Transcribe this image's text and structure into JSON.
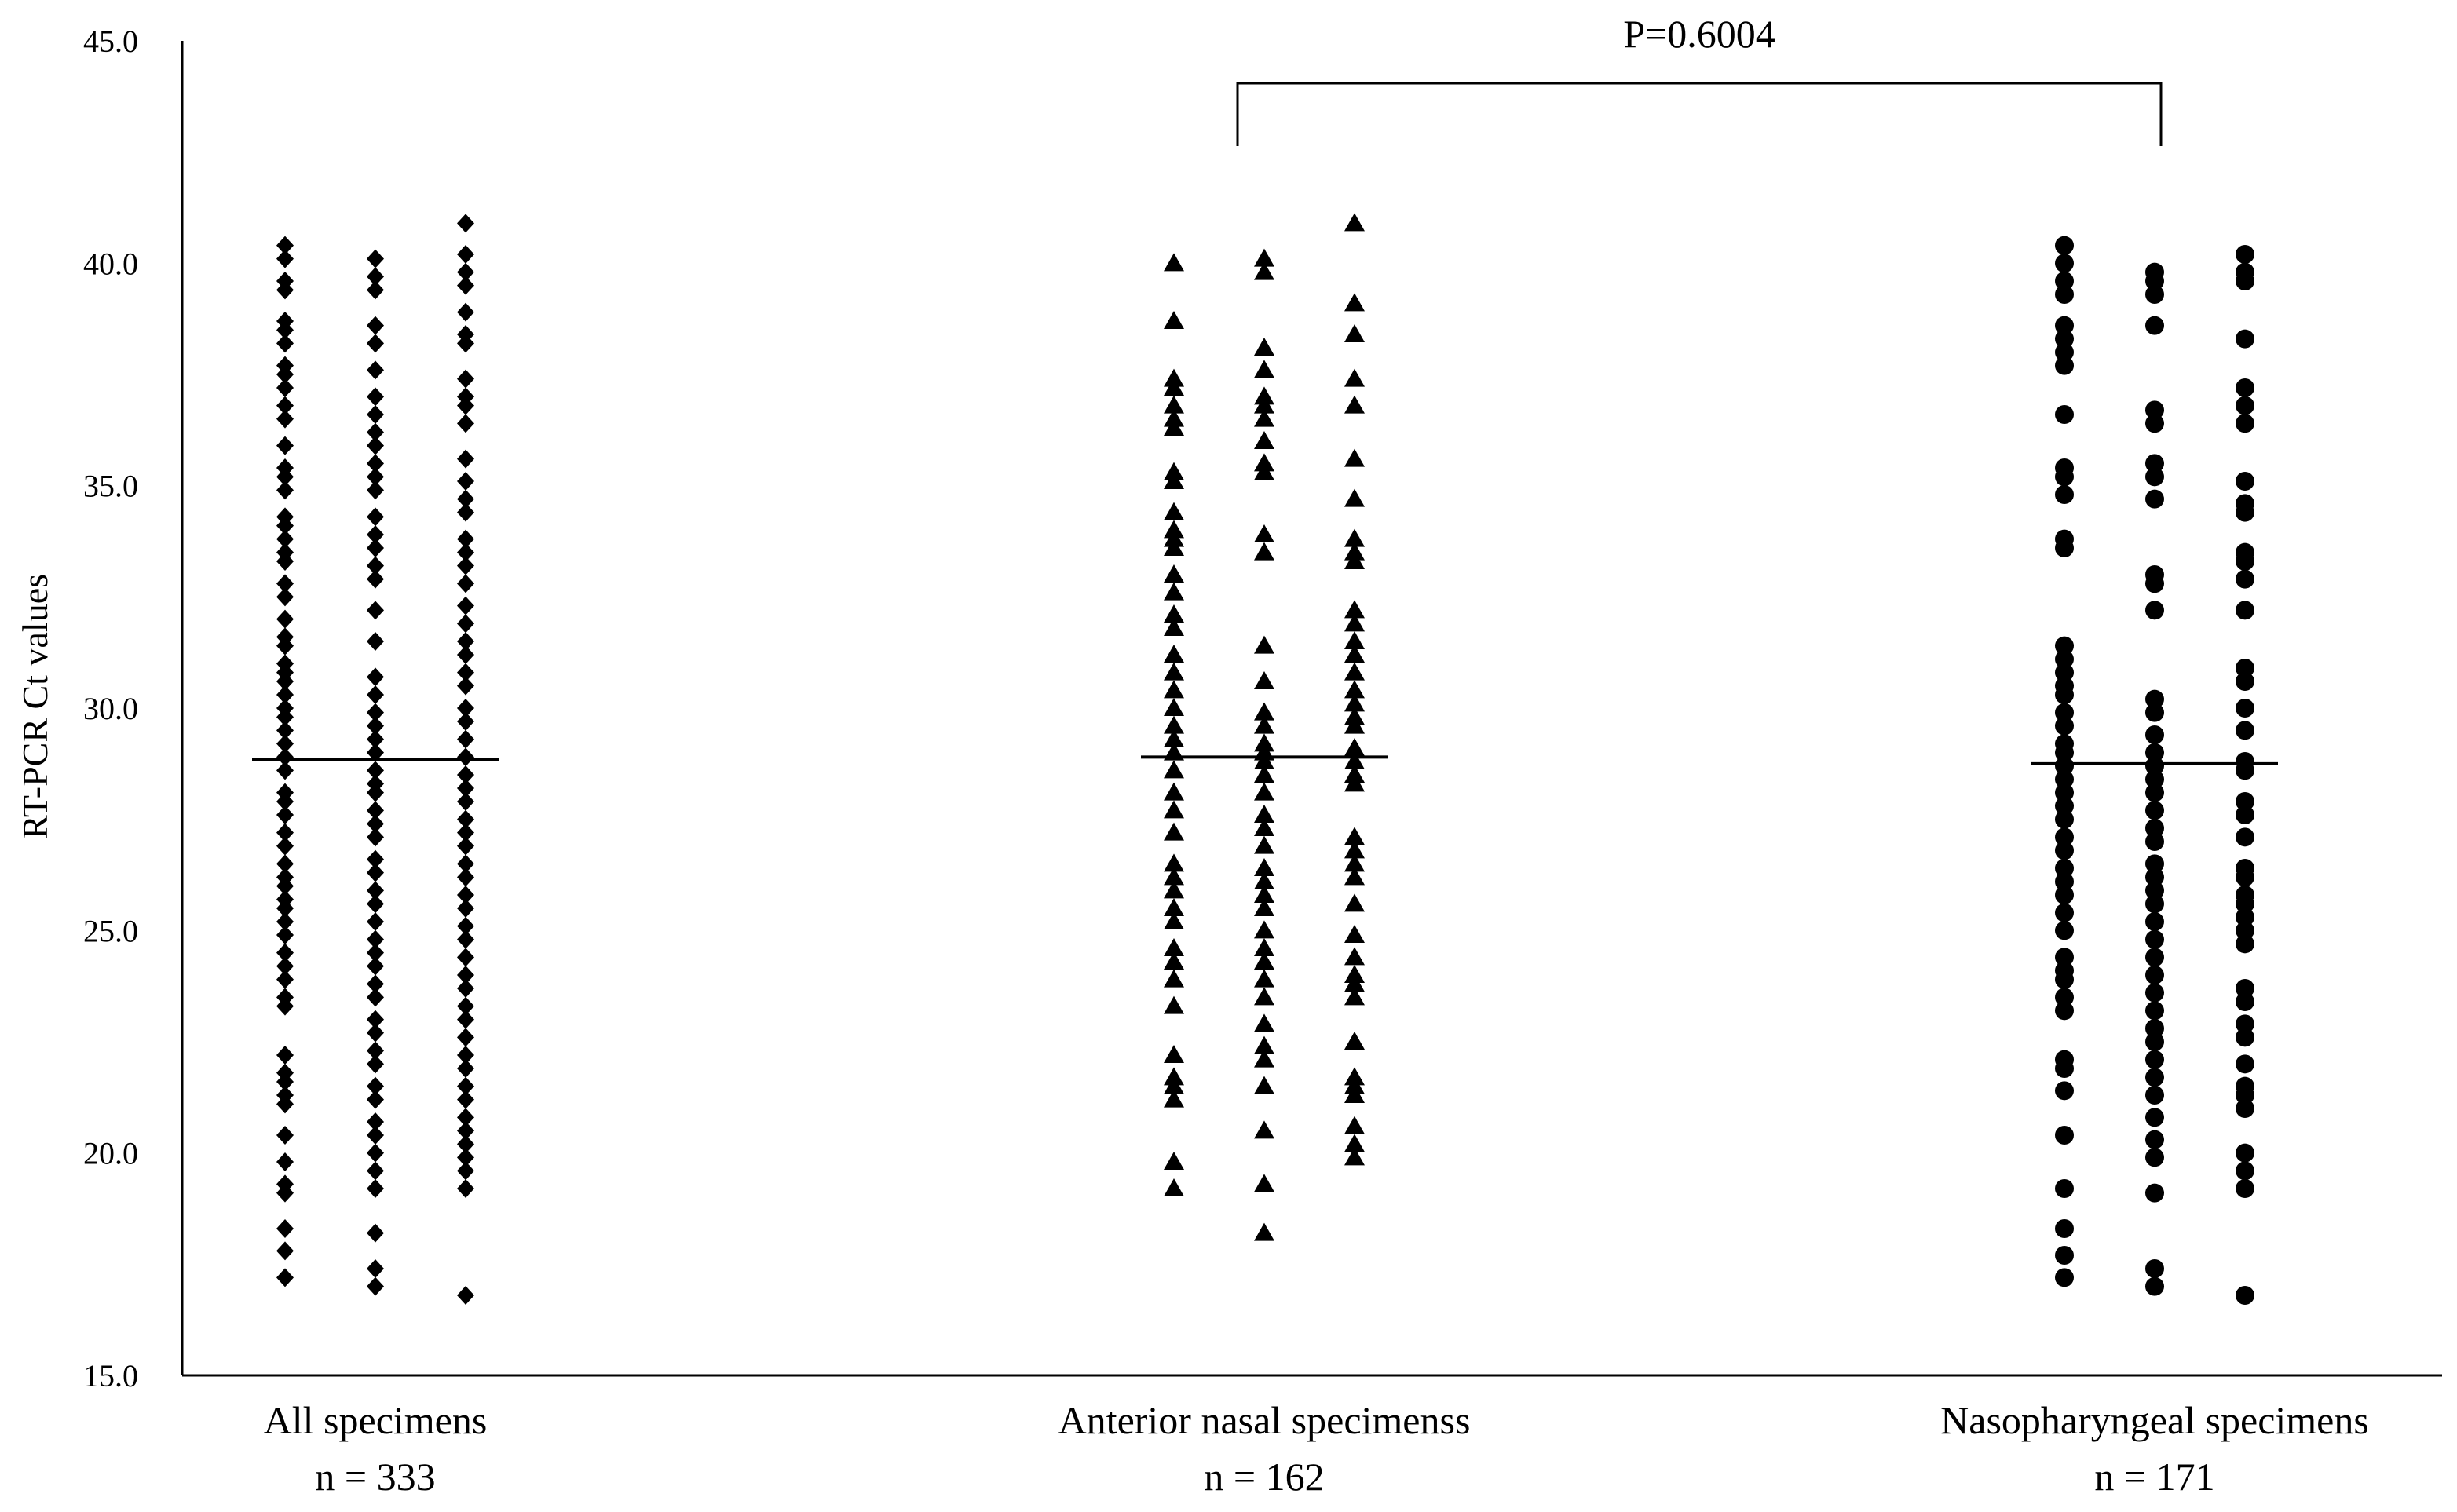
{
  "chart_data": {
    "type": "scatter",
    "title": "",
    "xlabel": "",
    "ylabel": "RT-PCR Ct values",
    "ylim": [
      15,
      45
    ],
    "yticks": [
      "15.0",
      "20.0",
      "25.0",
      "30.0",
      "35.0",
      "40.0",
      "45.0"
    ],
    "grid": false,
    "legend": "none",
    "categories": [
      {
        "label": "All specimens",
        "n_label": "n = 333",
        "marker": "diamond",
        "median": 28.85
      },
      {
        "label": "Anterior nasal specimenss",
        "n_label": "n = 162",
        "marker": "triangle",
        "median": 28.9
      },
      {
        "label": "Nasopharyngeal specimens",
        "n_label": "n = 171",
        "marker": "circle",
        "median": 28.75
      }
    ],
    "series": [
      {
        "category": 0,
        "values": [
          40.4,
          40.1,
          39.6,
          39.4,
          38.7,
          38.5,
          38.2,
          37.7,
          37.5,
          37.2,
          36.8,
          36.5,
          35.9,
          35.4,
          35.2,
          34.9,
          34.3,
          34.1,
          33.8,
          33.5,
          33.3,
          32.8,
          32.5,
          32.0,
          31.6,
          31.4,
          31.0,
          30.8,
          30.6,
          30.3,
          30.0,
          29.8,
          29.5,
          29.2,
          28.9,
          28.6,
          28.1,
          27.9,
          27.6,
          27.2,
          26.9,
          26.5,
          26.2,
          26.0,
          25.7,
          25.5,
          25.2,
          24.9,
          24.5,
          24.2,
          23.9,
          23.5,
          23.3,
          22.2,
          21.8,
          21.6,
          21.3,
          21.1,
          20.4,
          19.8,
          19.3,
          19.1,
          18.3,
          17.8,
          17.2
        ]
      },
      {
        "category": 0,
        "values": [
          40.1,
          39.7,
          39.4,
          38.6,
          38.2,
          37.6,
          37.0,
          36.6,
          36.2,
          35.9,
          35.5,
          35.2,
          34.9,
          34.3,
          33.9,
          33.6,
          33.2,
          32.9,
          32.2,
          31.5,
          30.7,
          30.3,
          29.9,
          29.6,
          29.3,
          29.0,
          28.6,
          28.3,
          28.1,
          27.7,
          27.4,
          27.1,
          26.6,
          26.3,
          25.9,
          25.6,
          25.2,
          24.8,
          24.5,
          24.2,
          23.8,
          23.5,
          23.0,
          22.7,
          22.3,
          22.0,
          21.5,
          21.2,
          20.7,
          20.4,
          20.0,
          19.6,
          19.2,
          18.2,
          17.4,
          17.0
        ]
      },
      {
        "category": 0,
        "values": [
          40.9,
          40.2,
          39.8,
          39.5,
          38.9,
          38.4,
          38.2,
          37.4,
          37.0,
          36.8,
          36.4,
          35.6,
          35.1,
          34.7,
          34.4,
          33.8,
          33.5,
          33.2,
          32.8,
          32.3,
          31.9,
          31.5,
          31.2,
          30.8,
          30.5,
          30.0,
          29.7,
          29.3,
          28.9,
          28.5,
          28.2,
          27.9,
          27.5,
          27.2,
          26.9,
          26.5,
          26.2,
          25.8,
          25.5,
          25.1,
          24.8,
          24.4,
          24.0,
          23.7,
          23.3,
          23.0,
          22.6,
          22.2,
          21.9,
          21.5,
          21.2,
          20.8,
          20.5,
          20.2,
          19.9,
          19.6,
          19.2,
          16.8
        ]
      },
      {
        "category": 1,
        "values": [
          40.0,
          38.7,
          37.4,
          37.2,
          36.8,
          36.5,
          36.3,
          35.3,
          35.1,
          34.4,
          34.0,
          33.8,
          33.6,
          33.0,
          32.6,
          32.1,
          31.8,
          31.2,
          30.8,
          30.4,
          30.0,
          29.6,
          29.3,
          29.0,
          28.6,
          28.1,
          27.7,
          27.2,
          26.5,
          26.2,
          25.9,
          25.5,
          25.2,
          24.6,
          24.3,
          23.9,
          23.3,
          22.2,
          21.7,
          21.5,
          21.2,
          19.8,
          19.2
        ]
      },
      {
        "category": 1,
        "values": [
          40.1,
          39.8,
          38.1,
          37.6,
          37.0,
          36.8,
          36.5,
          36.0,
          35.5,
          35.3,
          33.9,
          33.5,
          31.4,
          30.6,
          29.9,
          29.6,
          29.2,
          29.0,
          28.8,
          28.5,
          28.1,
          27.6,
          27.3,
          26.9,
          26.4,
          26.1,
          25.8,
          25.5,
          25.0,
          24.6,
          24.3,
          23.9,
          23.5,
          22.9,
          22.4,
          22.1,
          21.5,
          20.5,
          19.3,
          18.2
        ]
      },
      {
        "category": 1,
        "values": [
          40.9,
          39.1,
          38.4,
          37.4,
          36.8,
          35.6,
          34.7,
          33.8,
          33.5,
          33.3,
          32.2,
          31.9,
          31.5,
          31.2,
          30.8,
          30.4,
          30.1,
          29.8,
          29.6,
          29.1,
          28.8,
          28.5,
          28.3,
          27.1,
          26.8,
          26.5,
          26.2,
          25.6,
          24.9,
          24.4,
          24.0,
          23.8,
          23.5,
          22.5,
          21.7,
          21.5,
          21.3,
          20.6,
          20.2,
          19.9
        ]
      },
      {
        "category": 2,
        "values": [
          40.4,
          40.0,
          39.6,
          39.3,
          38.6,
          38.3,
          38.0,
          37.7,
          36.6,
          35.4,
          35.2,
          34.8,
          33.8,
          33.6,
          31.4,
          31.1,
          30.8,
          30.5,
          30.3,
          29.9,
          29.6,
          29.2,
          29.0,
          28.7,
          28.4,
          28.1,
          27.8,
          27.5,
          27.1,
          26.8,
          26.4,
          26.1,
          25.8,
          25.4,
          25.0,
          24.4,
          24.1,
          23.9,
          23.5,
          23.2,
          22.1,
          21.9,
          21.4,
          20.4,
          19.2,
          18.3,
          17.7,
          17.2
        ]
      },
      {
        "category": 2,
        "values": [
          39.8,
          39.6,
          39.3,
          38.6,
          36.7,
          36.4,
          35.5,
          35.2,
          34.7,
          33.0,
          32.8,
          32.2,
          30.2,
          29.9,
          29.4,
          29.0,
          28.7,
          28.4,
          28.1,
          27.7,
          27.3,
          27.0,
          26.5,
          26.2,
          25.9,
          25.6,
          25.2,
          24.8,
          24.4,
          24.0,
          23.6,
          23.2,
          22.8,
          22.5,
          22.1,
          21.7,
          21.3,
          20.8,
          20.3,
          19.9,
          19.1,
          17.4,
          17.0
        ]
      },
      {
        "category": 2,
        "values": [
          40.2,
          39.8,
          39.6,
          38.3,
          37.2,
          36.8,
          36.4,
          35.1,
          34.6,
          34.4,
          33.5,
          33.3,
          32.9,
          32.2,
          30.9,
          30.6,
          30.0,
          29.5,
          28.8,
          28.6,
          27.9,
          27.6,
          27.1,
          26.4,
          26.2,
          25.8,
          25.6,
          25.3,
          25.0,
          24.7,
          23.7,
          23.4,
          22.9,
          22.6,
          22.0,
          21.5,
          21.3,
          21.0,
          20.0,
          19.6,
          19.2,
          16.8
        ]
      }
    ],
    "annotation": {
      "text": "P=0.6004",
      "from_category": 1,
      "to_category": 2
    }
  }
}
